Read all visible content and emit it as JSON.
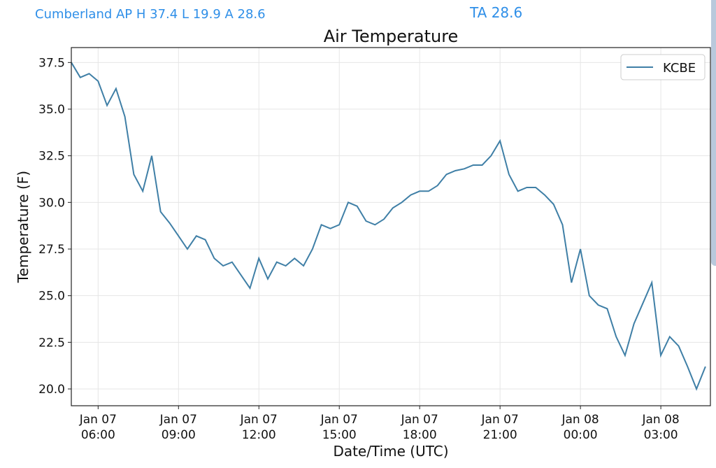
{
  "header": {
    "station_summary": "Cumberland AP H 37.4 L 19.9 A 28.6",
    "current": "TA 28.6"
  },
  "chart_data": {
    "type": "line",
    "title": "Air Temperature",
    "xlabel": "Date/Time (UTC)",
    "ylabel": "Temperature (F)",
    "x_units": "hours since Jan 07 00:00 UTC",
    "xlim": [
      5.0,
      28.85
    ],
    "ylim": [
      19.1,
      38.3
    ],
    "grid": true,
    "legend_position": "top-right",
    "yticks": [
      20.0,
      22.5,
      25.0,
      27.5,
      30.0,
      32.5,
      35.0,
      37.5
    ],
    "ytick_labels": [
      "20.0",
      "22.5",
      "25.0",
      "27.5",
      "30.0",
      "32.5",
      "35.0",
      "37.5"
    ],
    "xticks": [
      6,
      9,
      12,
      15,
      18,
      21,
      24,
      27
    ],
    "xtick_labels": [
      [
        "Jan 07",
        "06:00"
      ],
      [
        "Jan 07",
        "09:00"
      ],
      [
        "Jan 07",
        "12:00"
      ],
      [
        "Jan 07",
        "15:00"
      ],
      [
        "Jan 07",
        "18:00"
      ],
      [
        "Jan 07",
        "21:00"
      ],
      [
        "Jan 08",
        "00:00"
      ],
      [
        "Jan 08",
        "03:00"
      ]
    ],
    "series": [
      {
        "name": "KCBE",
        "color": "#3f7fa6",
        "x_start": 5.0,
        "x_step_hours": 0.3333,
        "values": [
          37.5,
          36.7,
          36.9,
          36.5,
          35.2,
          36.1,
          34.6,
          31.5,
          30.6,
          32.5,
          29.5,
          28.9,
          28.2,
          27.5,
          28.2,
          28.0,
          27.0,
          26.6,
          26.8,
          26.1,
          25.4,
          27.0,
          25.9,
          26.8,
          26.6,
          27.0,
          26.6,
          27.5,
          28.8,
          28.6,
          28.8,
          30.0,
          29.8,
          29.0,
          28.8,
          29.1,
          29.7,
          30.0,
          30.4,
          30.6,
          30.6,
          30.9,
          31.5,
          31.7,
          31.8,
          32.0,
          32.0,
          32.5,
          33.3,
          31.5,
          30.6,
          30.8,
          30.8,
          30.4,
          29.9,
          28.8,
          25.7,
          27.5,
          25.0,
          24.5,
          24.3,
          22.8,
          21.8,
          23.5,
          24.6,
          25.7,
          21.8,
          22.8,
          22.3,
          21.2,
          20.0,
          21.2
        ]
      }
    ]
  }
}
